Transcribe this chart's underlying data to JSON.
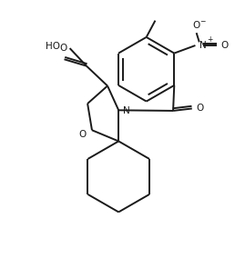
{
  "bg_color": "#ffffff",
  "line_color": "#1a1a1a",
  "line_width": 1.4,
  "fig_width": 2.58,
  "fig_height": 3.06,
  "dpi": 100,
  "xlim": [
    -1.5,
    8.5
  ],
  "ylim": [
    -1.0,
    11.5
  ]
}
